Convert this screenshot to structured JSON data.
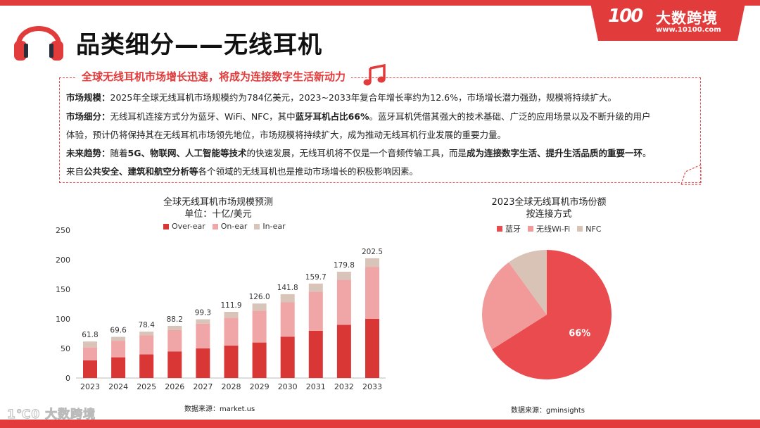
{
  "brand": {
    "logo_text": "100",
    "name": "大数跨境",
    "url": "www.10100.com"
  },
  "title": "品类细分——无线耳机",
  "summary": {
    "headline": "全球无线耳机市场增长迅速，将成为连接数字生活新动力",
    "scale_label": "市场规模：",
    "scale_text": "2025年全球无线耳机市场规模约为784亿美元，2023~2033年复合年增长率约为12.6%，市场增长潜力强劲，规模将持续扩大。",
    "segment_label": "市场细分：",
    "segment_text_a": "无线耳机连接方式分为蓝牙、WiFi、NFC，其中",
    "segment_bold": "蓝牙耳机占比66%",
    "segment_text_b": "。蓝牙耳机凭借其强大的技术基础、广泛的应用场景以及不断升级的用户",
    "segment_text_c": "体验，预计仍将保持其在无线耳机市场领先地位，市场规模将持续扩大，成为推动无线耳机行业发展的重要力量。",
    "trend_label": "未来趋势：",
    "trend_text_a": "随着",
    "trend_bold_a": "5G、物联网、人工智能等技术",
    "trend_text_b": "的快速发展，无线耳机将不仅是一个音频传输工具，而是",
    "trend_bold_b": "成为连接数字生活、提升生活品质的重要一环",
    "trend_text_c": "。",
    "trend_text_d": "来自",
    "trend_bold_c": "公共安全、建筑和航空分析等",
    "trend_text_e": "各个领域的无线耳机也是推动市场增长的积极影响因素。"
  },
  "footer": {
    "logo_text": "1℃0 大数跨境"
  },
  "chart_data": [
    {
      "type": "bar",
      "stacked": true,
      "title": "全球无线耳机市场规模预测",
      "subtitle": "单位：十亿/美元",
      "categories": [
        "2023",
        "2024",
        "2025",
        "2026",
        "2027",
        "2028",
        "2029",
        "2030",
        "2031",
        "2032",
        "2033"
      ],
      "series": [
        {
          "name": "Over-ear",
          "color": "#d93636",
          "values": [
            30,
            35,
            40,
            45,
            50,
            55,
            60,
            70,
            80,
            90,
            100
          ]
        },
        {
          "name": "On-ear",
          "color": "#f0a6a6",
          "values": [
            22,
            28,
            32,
            36,
            42,
            47,
            54,
            58,
            66,
            76,
            88
          ]
        },
        {
          "name": "In-ear",
          "color": "#d8c4b8",
          "values": [
            9.8,
            6.6,
            6.4,
            7.2,
            7.3,
            9.9,
            12,
            13.8,
            13.7,
            13.8,
            14.5
          ]
        }
      ],
      "totals": [
        "61.8",
        "69.6",
        "78.4",
        "88.2",
        "99.3",
        "111.9",
        "126.0",
        "141.8",
        "159.7",
        "179.8",
        "202.5"
      ],
      "yticks": [
        "0",
        "50",
        "100",
        "150",
        "200",
        "250"
      ],
      "ylim": [
        0,
        250
      ],
      "legend": "top",
      "source": "数据来源：market.us"
    },
    {
      "type": "pie",
      "title": "2023全球无线耳机市场份额",
      "subtitle": "按连接方式",
      "labels": [
        "蓝牙",
        "无线Wi-Fi",
        "NFC"
      ],
      "values": [
        66,
        24,
        10
      ],
      "colors": [
        "#ea4b4f",
        "#f29a9a",
        "#d9c3b6"
      ],
      "slice_label": "66%",
      "legend": "top",
      "source": "数据来源：gminsights"
    }
  ]
}
